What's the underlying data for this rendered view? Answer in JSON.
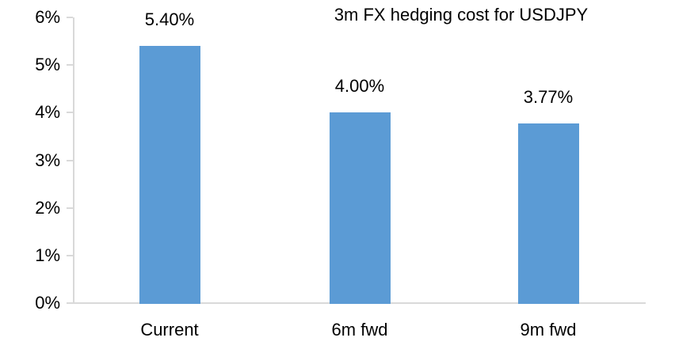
{
  "chart_data": {
    "type": "bar",
    "title": "3m FX hedging cost for USDJPY",
    "categories": [
      "Current",
      "6m fwd",
      "9m fwd"
    ],
    "values": [
      5.4,
      4.0,
      3.77
    ],
    "data_labels": [
      "5.40%",
      "4.00%",
      "3.77%"
    ],
    "xlabel": "",
    "ylabel": "",
    "ylim": [
      0,
      6
    ],
    "ytick_values": [
      0,
      1,
      2,
      3,
      4,
      5,
      6
    ],
    "ytick_labels": [
      "0%",
      "1%",
      "2%",
      "3%",
      "4%",
      "5%",
      "6%"
    ],
    "grid": "off",
    "legend": "none",
    "bar_color": "#5b9bd5",
    "axis_color": "#d9d9d9",
    "text_color": "#000000",
    "background_color": "#ffffff"
  }
}
